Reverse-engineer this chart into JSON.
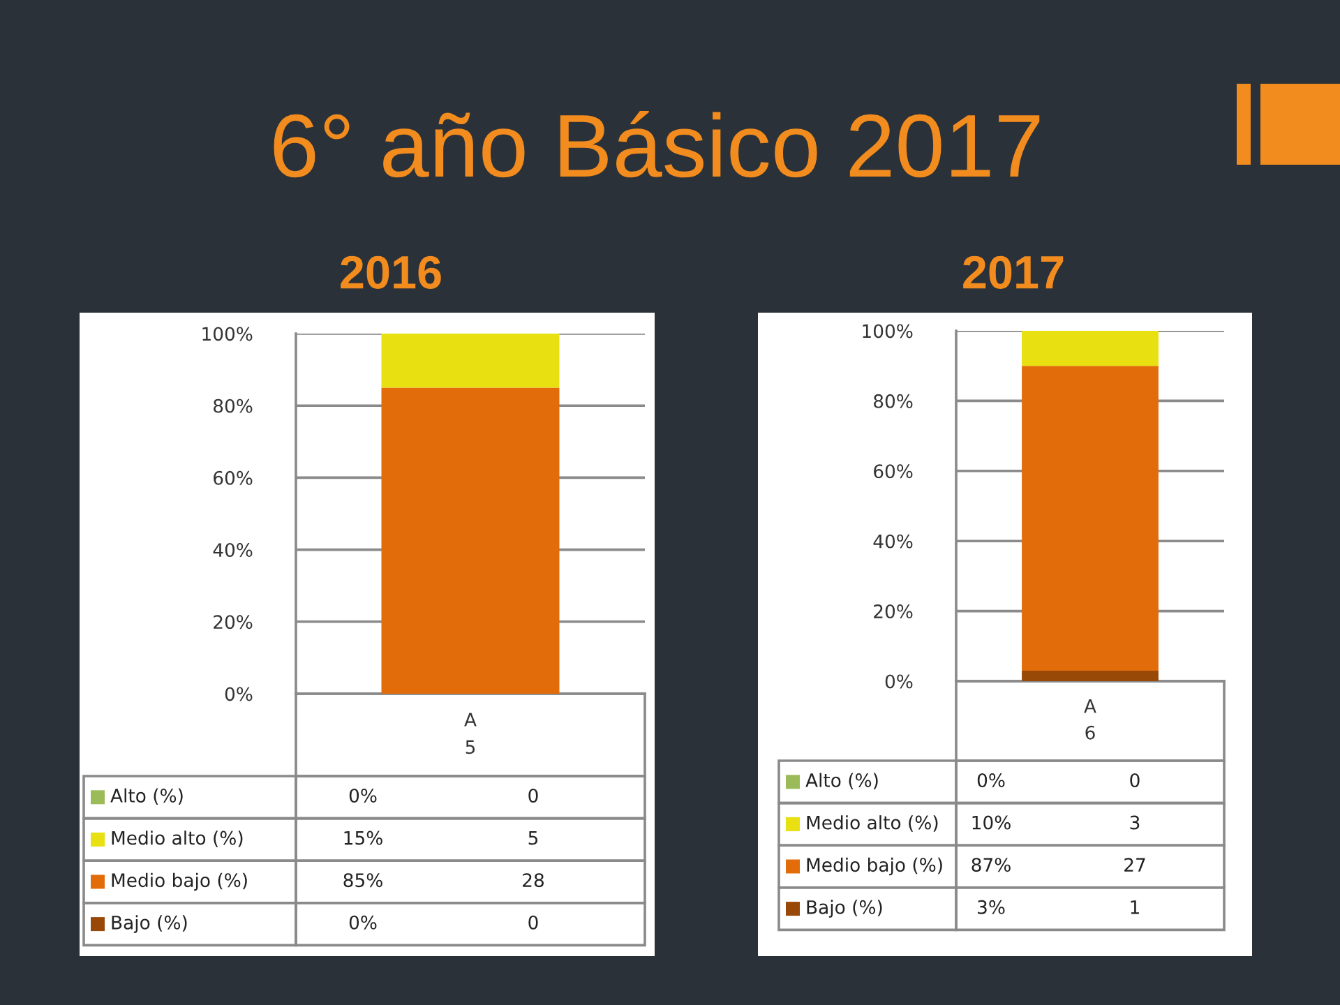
{
  "chart_data": [
    {
      "type": "bar",
      "title": "6° año Básico 2017",
      "subtitle": "2016",
      "stacked": true,
      "categories": [
        "A\n5"
      ],
      "ylim": [
        0,
        100
      ],
      "yticks": [
        {
          "value": 0,
          "label": "0%"
        },
        {
          "value": 20,
          "label": "20%"
        },
        {
          "value": 40,
          "label": "40%"
        },
        {
          "value": 60,
          "label": "60%"
        },
        {
          "value": 80,
          "label": "80%"
        },
        {
          "value": 100,
          "label": "100%"
        }
      ],
      "grid": "y",
      "series": [
        {
          "name": "Bajo (%)",
          "color": "#984807",
          "values": [
            0
          ]
        },
        {
          "name": "Medio bajo (%)",
          "color": "#e36c0a",
          "values": [
            85
          ]
        },
        {
          "name": "Medio alto (%)",
          "color": "#e8e010",
          "values": [
            15
          ]
        },
        {
          "name": "Alto (%)",
          "color": "#9bbb59",
          "values": [
            0
          ]
        }
      ],
      "legend": "bottom",
      "annotations": [
        "0%",
        "85%",
        "15%",
        "0%",
        "0",
        "28",
        "5",
        "0"
      ]
    },
    {
      "type": "bar",
      "subtitle": "2017",
      "stacked": true,
      "categories": [
        "A\n6"
      ],
      "ylim": [
        0,
        100
      ],
      "yticks": [
        {
          "value": 0,
          "label": "0%"
        },
        {
          "value": 20,
          "label": "20%"
        },
        {
          "value": 40,
          "label": "40%"
        },
        {
          "value": 60,
          "label": "60%"
        },
        {
          "value": 80,
          "label": "80%"
        },
        {
          "value": 100,
          "label": "100%"
        }
      ],
      "grid": "y",
      "series": [
        {
          "name": "Bajo (%)",
          "color": "#984807",
          "values": [
            3
          ]
        },
        {
          "name": "Medio bajo (%)",
          "color": "#e36c0a",
          "values": [
            87
          ]
        },
        {
          "name": "Medio alto (%)",
          "color": "#e8e010",
          "values": [
            10
          ]
        },
        {
          "name": "Alto (%)",
          "color": "#9bbb59",
          "values": [
            0
          ]
        }
      ],
      "legend": "bottom",
      "annotations": [
        "3%",
        "87%",
        "10%",
        "0%",
        "1",
        "27",
        "3",
        "0"
      ]
    }
  ]
}
